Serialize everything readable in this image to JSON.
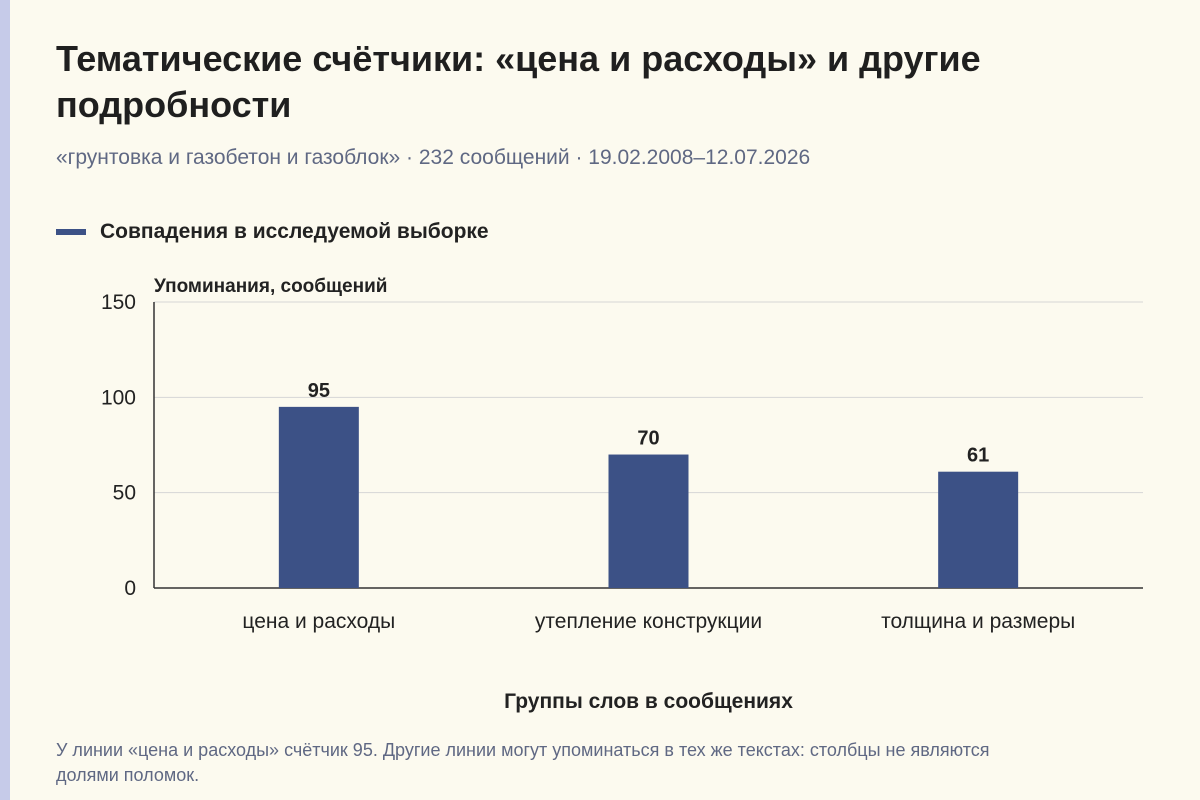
{
  "page": {
    "title": "Тематические счётчики: «цена и расходы» и другие подробности",
    "subtitle": "«грунтовка и газобетон и газоблок» · 232 сообщений · 19.02.2008–12.07.2026",
    "footnote": "У линии «цена и расходы» счётчик 95. Другие линии могут упоминаться в тех же текстах: столбцы не являются долями поломок."
  },
  "colors": {
    "bar": "#3c5186",
    "gridline": "#d6d6d6",
    "axis": "#333333",
    "background": "#fcfaef",
    "accent": "#c6cbe9"
  },
  "chart_data": {
    "type": "bar",
    "categories": [
      "цена и расходы",
      "утепление конструкции",
      "толщина и размеры"
    ],
    "series": [
      {
        "name": "Совпадения в исследуемой выборке",
        "values": [
          95,
          70,
          61
        ]
      }
    ],
    "data_labels": [
      "95",
      "70",
      "61"
    ],
    "ylabel": "Упоминания, сообщений",
    "xlabel": "Группы слов в сообщениях",
    "ylim": [
      0,
      150
    ],
    "yticks": [
      0,
      50,
      100,
      150
    ],
    "grid": true,
    "legend": "top-left"
  }
}
